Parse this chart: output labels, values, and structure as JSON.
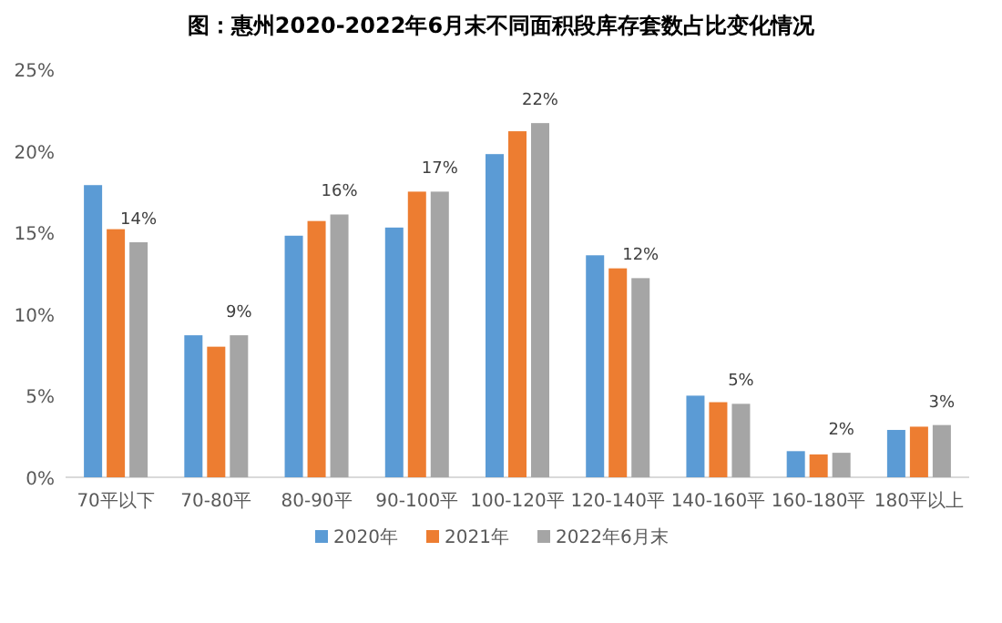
{
  "chart_data": {
    "type": "bar",
    "title": "图：惠州2020-2022年6月末不同面积段库存套数占比变化情况",
    "categories": [
      "70平以下",
      "70-80平",
      "80-90平",
      "90-100平",
      "100-120平",
      "120-140平",
      "140-160平",
      "160-180平",
      "180平以上"
    ],
    "series": [
      {
        "name": "2020年",
        "color": "#5b9bd5",
        "values": [
          17.9,
          8.7,
          14.8,
          15.3,
          19.8,
          13.6,
          5.0,
          1.6,
          2.9
        ]
      },
      {
        "name": "2021年",
        "color": "#ed7d31",
        "values": [
          15.2,
          8.0,
          15.7,
          17.5,
          21.2,
          12.8,
          4.6,
          1.4,
          3.1
        ]
      },
      {
        "name": "2022年6月末",
        "color": "#a5a5a5",
        "values": [
          14.4,
          8.7,
          16.1,
          17.5,
          21.7,
          12.2,
          4.5,
          1.5,
          3.2
        ],
        "value_labels": [
          "14%",
          "9%",
          "16%",
          "17%",
          "22%",
          "12%",
          "5%",
          "2%",
          "3%"
        ]
      }
    ],
    "ylim": [
      0,
      25
    ],
    "yticks": [
      {
        "value": 0,
        "label": "0%"
      },
      {
        "value": 5,
        "label": "5%"
      },
      {
        "value": 10,
        "label": "10%"
      },
      {
        "value": 15,
        "label": "15%"
      },
      {
        "value": 20,
        "label": "20%"
      },
      {
        "value": 25,
        "label": "25%"
      }
    ],
    "grid": false,
    "legend": "bottom"
  }
}
